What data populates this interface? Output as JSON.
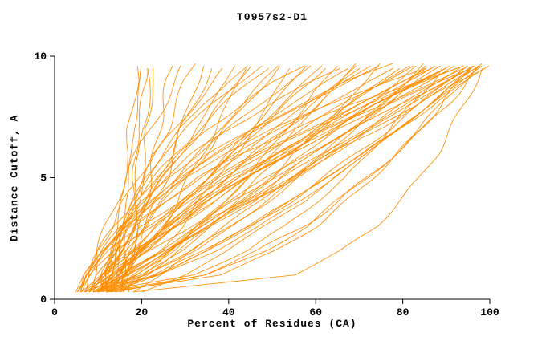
{
  "window": {
    "title": "T0957s2-D1"
  },
  "chart_data": {
    "type": "line",
    "title": "T0957s2-D1",
    "xlabel": "Percent of Residues (CA)",
    "ylabel": "Distance Cutoff, A",
    "xlim": [
      0,
      100
    ],
    "ylim": [
      0,
      10
    ],
    "x_ticks": [
      0,
      20,
      40,
      60,
      80,
      100
    ],
    "x_tick_labels": [
      "0",
      "20",
      "40",
      "60",
      "80",
      "100"
    ],
    "y_ticks": [
      0,
      5,
      10
    ],
    "y_tick_labels": [
      "0",
      "5",
      "10"
    ],
    "grid": "off",
    "legend": "none",
    "line_color": "#ff8c00",
    "axis_color": "#000000",
    "background": "#ffffff",
    "series_format": "each curve lists Percent of Residues (CA) at the distance cutoffs in 'cutoffs'",
    "cutoffs": [
      0.3,
      1,
      2,
      3,
      4,
      5,
      6,
      7,
      8,
      9,
      9.7
    ],
    "curves": [
      [
        14,
        14,
        15,
        16,
        16,
        17,
        18,
        18,
        19,
        20,
        20
      ],
      [
        16,
        16,
        17,
        18,
        18,
        19,
        20,
        20,
        21,
        22,
        22
      ],
      [
        15,
        16,
        16,
        17,
        18,
        18,
        19,
        19,
        20,
        21,
        21
      ],
      [
        8,
        9,
        10,
        12,
        14,
        16,
        19,
        22,
        25,
        28,
        30
      ],
      [
        10,
        12,
        14,
        16,
        19,
        21,
        23,
        26,
        28,
        30,
        32
      ],
      [
        12,
        16,
        19,
        21,
        23,
        26,
        27,
        29,
        31,
        33,
        34
      ],
      [
        7,
        8,
        10,
        13,
        16,
        19,
        23,
        28,
        32,
        37,
        40
      ],
      [
        9,
        11,
        15,
        18,
        22,
        25,
        29,
        32,
        36,
        40,
        42
      ],
      [
        11,
        16,
        21,
        25,
        28,
        31,
        34,
        37,
        40,
        42,
        44
      ],
      [
        13,
        13,
        14,
        16,
        18,
        21,
        25,
        29,
        34,
        40,
        45
      ],
      [
        6,
        7,
        10,
        14,
        18,
        23,
        28,
        33,
        39,
        45,
        50
      ],
      [
        8,
        11,
        16,
        21,
        25,
        30,
        35,
        39,
        44,
        49,
        52
      ],
      [
        10,
        17,
        24,
        29,
        33,
        38,
        42,
        45,
        49,
        53,
        55
      ],
      [
        12,
        12,
        13,
        15,
        18,
        21,
        25,
        30,
        36,
        43,
        48
      ],
      [
        6,
        7,
        11,
        15,
        21,
        26,
        33,
        40,
        47,
        54,
        60
      ],
      [
        8,
        12,
        18,
        23,
        29,
        35,
        41,
        46,
        52,
        58,
        62
      ],
      [
        10,
        19,
        27,
        33,
        39,
        44,
        49,
        53,
        58,
        62,
        65
      ],
      [
        12,
        12,
        14,
        16,
        19,
        23,
        29,
        35,
        43,
        51,
        58
      ],
      [
        14,
        16,
        20,
        25,
        30,
        35,
        41,
        47,
        53,
        59,
        63
      ],
      [
        5,
        7,
        11,
        16,
        23,
        30,
        37,
        45,
        54,
        63,
        70
      ],
      [
        7,
        12,
        19,
        26,
        33,
        39,
        46,
        53,
        60,
        67,
        72
      ],
      [
        9,
        20,
        29,
        36,
        43,
        50,
        55,
        61,
        66,
        72,
        75
      ],
      [
        11,
        11,
        13,
        16,
        20,
        25,
        32,
        40,
        49,
        60,
        68
      ],
      [
        13,
        15,
        18,
        23,
        29,
        36,
        43,
        50,
        58,
        67,
        73
      ],
      [
        5,
        7,
        12,
        18,
        25,
        33,
        42,
        52,
        62,
        72,
        80
      ],
      [
        7,
        13,
        21,
        28,
        37,
        44,
        52,
        60,
        68,
        76,
        82
      ],
      [
        9,
        21,
        32,
        41,
        49,
        56,
        62,
        69,
        75,
        81,
        85
      ],
      [
        11,
        11,
        13,
        16,
        21,
        28,
        36,
        45,
        56,
        68,
        78
      ],
      [
        13,
        15,
        19,
        25,
        32,
        39,
        48,
        57,
        66,
        76,
        83
      ],
      [
        15,
        20,
        27,
        34,
        41,
        47,
        54,
        61,
        68,
        75,
        80
      ],
      [
        5,
        7,
        13,
        20,
        28,
        37,
        47,
        58,
        69,
        81,
        90
      ],
      [
        7,
        13,
        22,
        31,
        40,
        49,
        58,
        68,
        77,
        86,
        92
      ],
      [
        9,
        23,
        35,
        45,
        54,
        62,
        69,
        77,
        84,
        90,
        95
      ],
      [
        11,
        11,
        14,
        17,
        23,
        30,
        39,
        50,
        63,
        77,
        88
      ],
      [
        13,
        15,
        20,
        27,
        35,
        43,
        53,
        63,
        73,
        85,
        93
      ],
      [
        15,
        21,
        29,
        36,
        45,
        52,
        60,
        68,
        76,
        84,
        90
      ],
      [
        10,
        14,
        20,
        28,
        36,
        45,
        54,
        64,
        74,
        84,
        91
      ],
      [
        6,
        8,
        14,
        22,
        31,
        40,
        51,
        63,
        75,
        88,
        97
      ],
      [
        8,
        15,
        24,
        33,
        43,
        52,
        62,
        71,
        81,
        90,
        97
      ],
      [
        10,
        24,
        37,
        47,
        56,
        64,
        72,
        79,
        86,
        93,
        98
      ],
      [
        12,
        12,
        15,
        19,
        25,
        33,
        43,
        55,
        68,
        84,
        96
      ],
      [
        14,
        18,
        25,
        33,
        41,
        50,
        59,
        69,
        79,
        90,
        97
      ],
      [
        9,
        16,
        25,
        35,
        44,
        54,
        63,
        73,
        83,
        92,
        99
      ],
      [
        11,
        13,
        19,
        26,
        35,
        44,
        54,
        65,
        77,
        89,
        98
      ],
      [
        7,
        16,
        26,
        36,
        45,
        55,
        64,
        73,
        81,
        90,
        96
      ],
      [
        13,
        24,
        35,
        45,
        54,
        62,
        71,
        79,
        86,
        94,
        99
      ],
      [
        15,
        16,
        20,
        26,
        33,
        41,
        51,
        62,
        73,
        86,
        95
      ],
      [
        8,
        11,
        18,
        26,
        34,
        42,
        51,
        61,
        70,
        80,
        87
      ],
      [
        6,
        7,
        11,
        15,
        22,
        29,
        37,
        47,
        57,
        68,
        76
      ],
      [
        12,
        21,
        31,
        39,
        47,
        54,
        62,
        68,
        75,
        82,
        86
      ],
      [
        10,
        14,
        21,
        27,
        34,
        40,
        46,
        53,
        59,
        66,
        70
      ],
      [
        9,
        14,
        19,
        25,
        30,
        35,
        40,
        45,
        50,
        55,
        58
      ],
      [
        11,
        13,
        16,
        18,
        21,
        24,
        27,
        29,
        32,
        35,
        37
      ],
      [
        14,
        15,
        17,
        21,
        24,
        28,
        33,
        38,
        43,
        48,
        52
      ],
      [
        16,
        17,
        18,
        20,
        21,
        22,
        23,
        24,
        25,
        26,
        27
      ],
      [
        5,
        8,
        12,
        16,
        21,
        25,
        29,
        34,
        38,
        42,
        45
      ],
      [
        8,
        10,
        15,
        21,
        29,
        38,
        48,
        59,
        71,
        84,
        93
      ],
      [
        12,
        19,
        27,
        33,
        39,
        45,
        50,
        55,
        61,
        66,
        69
      ],
      [
        6,
        11,
        18,
        27,
        35,
        44,
        53,
        62,
        72,
        81,
        88
      ],
      [
        10,
        17,
        26,
        34,
        42,
        50,
        57,
        65,
        72,
        79,
        84
      ],
      [
        9,
        16,
        25,
        35,
        45,
        54,
        64,
        74,
        84,
        93,
        100
      ],
      [
        12,
        23,
        34,
        44,
        54,
        62,
        71,
        79,
        87,
        95,
        100
      ],
      [
        13,
        13,
        14,
        15,
        15,
        16,
        17,
        17,
        18,
        19,
        19
      ],
      [
        17,
        17,
        18,
        19,
        19,
        20,
        21,
        21,
        22,
        23,
        23
      ],
      [
        20,
        30,
        40,
        48,
        57,
        64,
        72,
        79,
        86,
        92,
        97
      ],
      [
        18,
        24,
        32,
        40,
        48,
        56,
        64,
        72,
        80,
        88,
        94
      ],
      [
        12,
        35,
        48,
        58,
        65,
        72,
        78,
        84,
        89,
        94,
        97
      ],
      [
        12,
        38,
        51,
        60,
        67,
        73,
        79,
        84,
        89,
        93,
        96
      ],
      [
        10,
        32,
        44,
        53,
        60,
        67,
        72,
        77,
        82,
        87,
        90
      ],
      [
        14,
        34,
        47,
        57,
        65,
        72,
        78,
        85,
        90,
        95,
        99
      ],
      [
        18,
        55,
        66,
        74,
        79,
        84,
        88,
        91,
        94,
        97,
        99
      ]
    ]
  }
}
